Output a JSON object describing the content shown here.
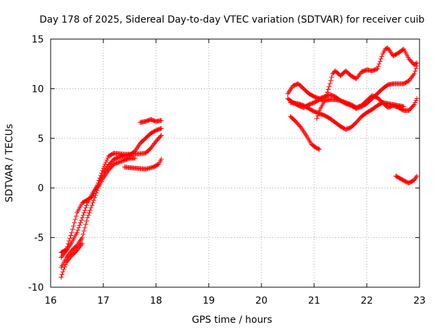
{
  "chart_data": {
    "type": "scatter",
    "title": "Day 178 of 2025, Sidereal Day-to-day VTEC variation (SDTVAR) for receiver cuib",
    "xlabel": "GPS time / hours",
    "ylabel": "SDTVAR / TECUs",
    "xlim": [
      16,
      23
    ],
    "ylim": [
      -10,
      15
    ],
    "xticks": [
      16,
      17,
      18,
      19,
      20,
      21,
      22,
      23
    ],
    "yticks": [
      -10,
      -5,
      0,
      5,
      10,
      15
    ],
    "xtick_labels": [
      "16",
      "17",
      "18",
      "19",
      "20",
      "21",
      "22",
      "23"
    ],
    "ytick_labels": [
      "-10",
      "-5",
      "0",
      "5",
      "10",
      "15"
    ],
    "grid": true,
    "marker": "+",
    "color": "#ff0000",
    "series": [
      {
        "name": "track1",
        "points": [
          [
            16.2,
            -6.5
          ],
          [
            16.3,
            -6.2
          ],
          [
            16.4,
            -4.5
          ],
          [
            16.5,
            -2.5
          ],
          [
            16.6,
            -1.5
          ],
          [
            16.7,
            -1.2
          ],
          [
            16.8,
            -0.8
          ],
          [
            16.9,
            0.5
          ],
          [
            17.0,
            2.0
          ],
          [
            17.1,
            3.2
          ],
          [
            17.2,
            3.5
          ],
          [
            17.4,
            3.4
          ],
          [
            17.6,
            3.4
          ],
          [
            17.8,
            3.5
          ],
          [
            17.9,
            4.0
          ],
          [
            18.0,
            4.7
          ],
          [
            18.1,
            5.3
          ]
        ]
      },
      {
        "name": "track2",
        "points": [
          [
            16.2,
            -7.0
          ],
          [
            16.3,
            -6.3
          ],
          [
            16.4,
            -5.5
          ],
          [
            16.5,
            -4.5
          ],
          [
            16.6,
            -3.0
          ],
          [
            16.7,
            -1.5
          ],
          [
            16.8,
            -0.5
          ],
          [
            16.9,
            0.3
          ],
          [
            17.0,
            1.5
          ],
          [
            17.1,
            2.3
          ],
          [
            17.2,
            2.9
          ],
          [
            17.3,
            3.1
          ],
          [
            17.5,
            3.3
          ],
          [
            17.6,
            3.7
          ],
          [
            17.7,
            4.5
          ],
          [
            17.8,
            5.0
          ],
          [
            17.9,
            5.5
          ],
          [
            18.0,
            5.8
          ],
          [
            18.1,
            6.0
          ]
        ]
      },
      {
        "name": "track3",
        "points": [
          [
            16.2,
            -8.0
          ],
          [
            16.3,
            -7.0
          ],
          [
            16.4,
            -6.3
          ],
          [
            16.5,
            -5.8
          ],
          [
            16.6,
            -5.0
          ],
          [
            16.7,
            -3.0
          ],
          [
            16.8,
            -1.5
          ],
          [
            16.9,
            0.0
          ],
          [
            17.0,
            1.0
          ],
          [
            17.1,
            1.8
          ],
          [
            17.2,
            2.4
          ],
          [
            17.4,
            2.8
          ],
          [
            17.5,
            3.0
          ],
          [
            17.6,
            3.0
          ]
        ]
      },
      {
        "name": "track4",
        "points": [
          [
            16.2,
            -9.0
          ],
          [
            16.25,
            -8.2
          ],
          [
            16.3,
            -7.5
          ],
          [
            16.4,
            -6.8
          ],
          [
            16.5,
            -6.3
          ],
          [
            16.6,
            -5.6
          ]
        ]
      },
      {
        "name": "track5",
        "points": [
          [
            17.4,
            2.1
          ],
          [
            17.6,
            2.0
          ],
          [
            17.8,
            1.9
          ],
          [
            17.95,
            2.1
          ],
          [
            18.05,
            2.4
          ],
          [
            18.1,
            2.9
          ]
        ]
      },
      {
        "name": "track6",
        "points": [
          [
            17.7,
            6.6
          ],
          [
            17.8,
            6.7
          ],
          [
            17.9,
            6.9
          ],
          [
            18.0,
            6.7
          ],
          [
            18.1,
            6.8
          ]
        ]
      },
      {
        "name": "track7",
        "points": [
          [
            20.5,
            9.5
          ],
          [
            20.6,
            10.3
          ],
          [
            20.7,
            10.5
          ],
          [
            20.8,
            10.0
          ],
          [
            20.9,
            9.5
          ],
          [
            21.0,
            9.2
          ],
          [
            21.1,
            9.0
          ],
          [
            21.2,
            9.2
          ],
          [
            21.3,
            9.4
          ],
          [
            21.4,
            9.2
          ],
          [
            21.5,
            8.8
          ],
          [
            21.6,
            8.5
          ],
          [
            21.7,
            8.3
          ],
          [
            21.8,
            8.0
          ],
          [
            21.9,
            8.2
          ],
          [
            22.0,
            8.5
          ],
          [
            22.1,
            9.0
          ],
          [
            22.2,
            9.5
          ],
          [
            22.3,
            10.0
          ],
          [
            22.4,
            10.4
          ],
          [
            22.5,
            10.5
          ],
          [
            22.7,
            10.5
          ],
          [
            22.8,
            10.8
          ],
          [
            22.9,
            11.5
          ],
          [
            22.95,
            12.3
          ]
        ]
      },
      {
        "name": "track8",
        "points": [
          [
            20.5,
            9.0
          ],
          [
            20.6,
            8.6
          ],
          [
            20.7,
            8.3
          ],
          [
            20.8,
            8.1
          ],
          [
            20.9,
            8.4
          ],
          [
            21.0,
            8.6
          ],
          [
            21.1,
            8.9
          ],
          [
            21.2,
            8.8
          ],
          [
            21.3,
            8.9
          ],
          [
            21.4,
            8.9
          ],
          [
            21.5,
            8.8
          ],
          [
            21.6,
            8.6
          ],
          [
            21.7,
            8.4
          ],
          [
            21.8,
            8.1
          ],
          [
            21.9,
            8.3
          ],
          [
            22.0,
            8.8
          ],
          [
            22.1,
            9.3
          ],
          [
            22.2,
            9.1
          ],
          [
            22.3,
            8.6
          ],
          [
            22.4,
            8.1
          ],
          [
            22.5,
            8.3
          ],
          [
            22.6,
            8.1
          ],
          [
            22.7,
            7.8
          ],
          [
            22.8,
            7.8
          ],
          [
            22.9,
            8.4
          ],
          [
            22.95,
            9.0
          ]
        ]
      },
      {
        "name": "track9",
        "points": [
          [
            20.55,
            8.6
          ],
          [
            20.7,
            8.5
          ],
          [
            20.8,
            8.3
          ],
          [
            20.9,
            8.0
          ],
          [
            21.0,
            7.7
          ],
          [
            21.1,
            7.5
          ],
          [
            21.2,
            7.3
          ],
          [
            21.3,
            7.0
          ],
          [
            21.4,
            6.6
          ],
          [
            21.5,
            6.2
          ],
          [
            21.6,
            5.9
          ],
          [
            21.7,
            6.1
          ],
          [
            21.8,
            6.6
          ],
          [
            21.9,
            7.2
          ],
          [
            22.0,
            7.6
          ],
          [
            22.1,
            7.9
          ],
          [
            22.2,
            8.3
          ],
          [
            22.3,
            8.6
          ],
          [
            22.4,
            8.5
          ],
          [
            22.5,
            8.4
          ],
          [
            22.6,
            8.3
          ],
          [
            22.7,
            8.2
          ]
        ]
      },
      {
        "name": "track10",
        "points": [
          [
            20.55,
            7.2
          ],
          [
            20.65,
            6.7
          ],
          [
            20.75,
            6.1
          ],
          [
            20.85,
            5.3
          ],
          [
            20.95,
            4.4
          ],
          [
            21.05,
            4.0
          ],
          [
            21.1,
            3.9
          ]
        ]
      },
      {
        "name": "track11",
        "points": [
          [
            21.05,
            7.0
          ],
          [
            21.1,
            7.8
          ],
          [
            21.2,
            8.8
          ],
          [
            21.3,
            10.5
          ],
          [
            21.35,
            11.5
          ],
          [
            21.4,
            11.8
          ],
          [
            21.5,
            11.3
          ],
          [
            21.6,
            11.8
          ],
          [
            21.7,
            11.3
          ],
          [
            21.8,
            11.0
          ],
          [
            21.9,
            11.7
          ],
          [
            22.0,
            11.9
          ],
          [
            22.1,
            11.8
          ],
          [
            22.2,
            12.0
          ],
          [
            22.3,
            13.5
          ],
          [
            22.35,
            14.0
          ],
          [
            22.4,
            14.1
          ],
          [
            22.5,
            13.3
          ],
          [
            22.6,
            13.6
          ],
          [
            22.7,
            14.0
          ],
          [
            22.8,
            13.0
          ],
          [
            22.9,
            12.4
          ],
          [
            22.95,
            12.6
          ]
        ]
      },
      {
        "name": "track12",
        "points": [
          [
            22.55,
            1.2
          ],
          [
            22.65,
            0.9
          ],
          [
            22.75,
            0.6
          ],
          [
            22.8,
            0.5
          ],
          [
            22.9,
            0.8
          ],
          [
            22.95,
            1.2
          ]
        ]
      }
    ]
  }
}
